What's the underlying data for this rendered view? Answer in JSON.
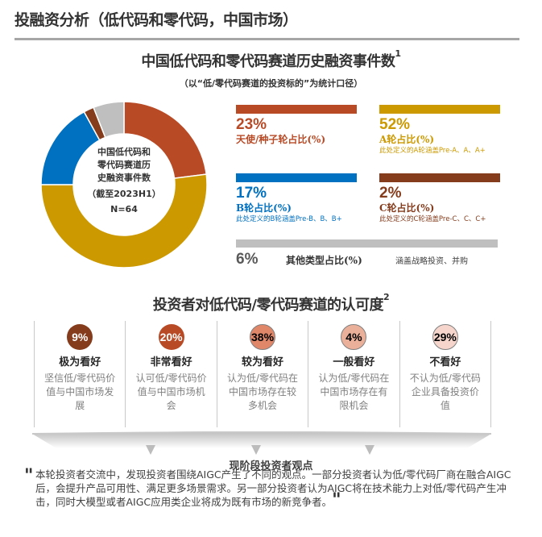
{
  "page": {
    "title": "投融资分析（低代码和零代码，中国市场）"
  },
  "funding": {
    "title": "中国低代码和零代码赛道历史融资事件数",
    "title_sup": "1",
    "subtitle": "（以“低/零代码赛道的投资标的”为统计口径）",
    "center_lines": [
      "中国低代码和",
      "零代码赛道历",
      "史融资事件数"
    ],
    "center_cutoff": "（截至2023H1）",
    "center_n": "N=64",
    "stats": [
      {
        "pct": "23%",
        "label": "天使/种子轮占比(%)",
        "note": "",
        "color": "#b84a26"
      },
      {
        "pct": "52%",
        "label": "A轮占比(%)",
        "note": "此处定义的A轮涵盖Pre-A、A、A+",
        "color": "#cc9900"
      },
      {
        "pct": "17%",
        "label": "B轮占比(%)",
        "note": "此处定义的B轮涵盖Pre-B、B、B+",
        "color": "#0070c0"
      },
      {
        "pct": "2%",
        "label": "C轮占比(%)",
        "note": "此处定义的C轮涵盖Pre-C、C、C+",
        "color": "#843c1c"
      }
    ],
    "other": {
      "pct": "6%",
      "label": "其他类型占比(%)",
      "note": "涵盖战略投资、并购",
      "color": "#bfbfbf"
    }
  },
  "sentiment": {
    "title": "投资者对低代码/零代码赛道的认可度",
    "title_sup": "2",
    "columns": [
      {
        "pct": "9%",
        "title": "极为看好",
        "desc": "坚信低/零代码价值与中国市场发展",
        "bg": "#843c1c",
        "fg": "#ffffff"
      },
      {
        "pct": "20%",
        "title": "非常看好",
        "desc": "认可低/零代码价值与中国市场机会",
        "bg": "#b84a26",
        "fg": "#ffffff"
      },
      {
        "pct": "38%",
        "title": "较为看好",
        "desc": "认为低/零代码在中国市场存在较多机会",
        "bg": "#e0876a",
        "fg": "#000000"
      },
      {
        "pct": "4%",
        "title": "一般看好",
        "desc": "认为低/零代码在中国市场存在有限机会",
        "bg": "#ebb09a",
        "fg": "#000000"
      },
      {
        "pct": "29%",
        "title": "不看好",
        "desc": "不认为低/零代码企业具备投资价值",
        "bg": "#f6d6cc",
        "fg": "#000000"
      }
    ]
  },
  "opinion": {
    "title": "现阶段投资者观点",
    "quote": "本轮投资者交流中，发现投资者围绕AIGC产生了不同的观点。一部分投资者认为低/零代码厂商在融合AIGC后，会提升产品可用性、满足更多场景需求。另一部分投资者认为AIGC将在技术能力上对低/零代码产生冲击，同时大模型或者AIGC应用类企业将成为既有市场的新竞争者。"
  },
  "chart_data": [
    {
      "type": "pie",
      "title": "中国低代码和零代码赛道历史融资事件数（截至2023H1）N=64",
      "categories": [
        "天使/种子轮",
        "A轮",
        "B轮",
        "C轮",
        "其他类型"
      ],
      "values": [
        23,
        52,
        17,
        2,
        6
      ],
      "colors": [
        "#b84a26",
        "#cc9900",
        "#0070c0",
        "#843c1c",
        "#bfbfbf"
      ],
      "donut": true,
      "unit": "%"
    },
    {
      "type": "table",
      "title": "投资者对低代码/零代码赛道的认可度",
      "categories": [
        "极为看好",
        "非常看好",
        "较为看好",
        "一般看好",
        "不看好"
      ],
      "values": [
        9,
        20,
        38,
        4,
        29
      ],
      "unit": "%"
    }
  ]
}
